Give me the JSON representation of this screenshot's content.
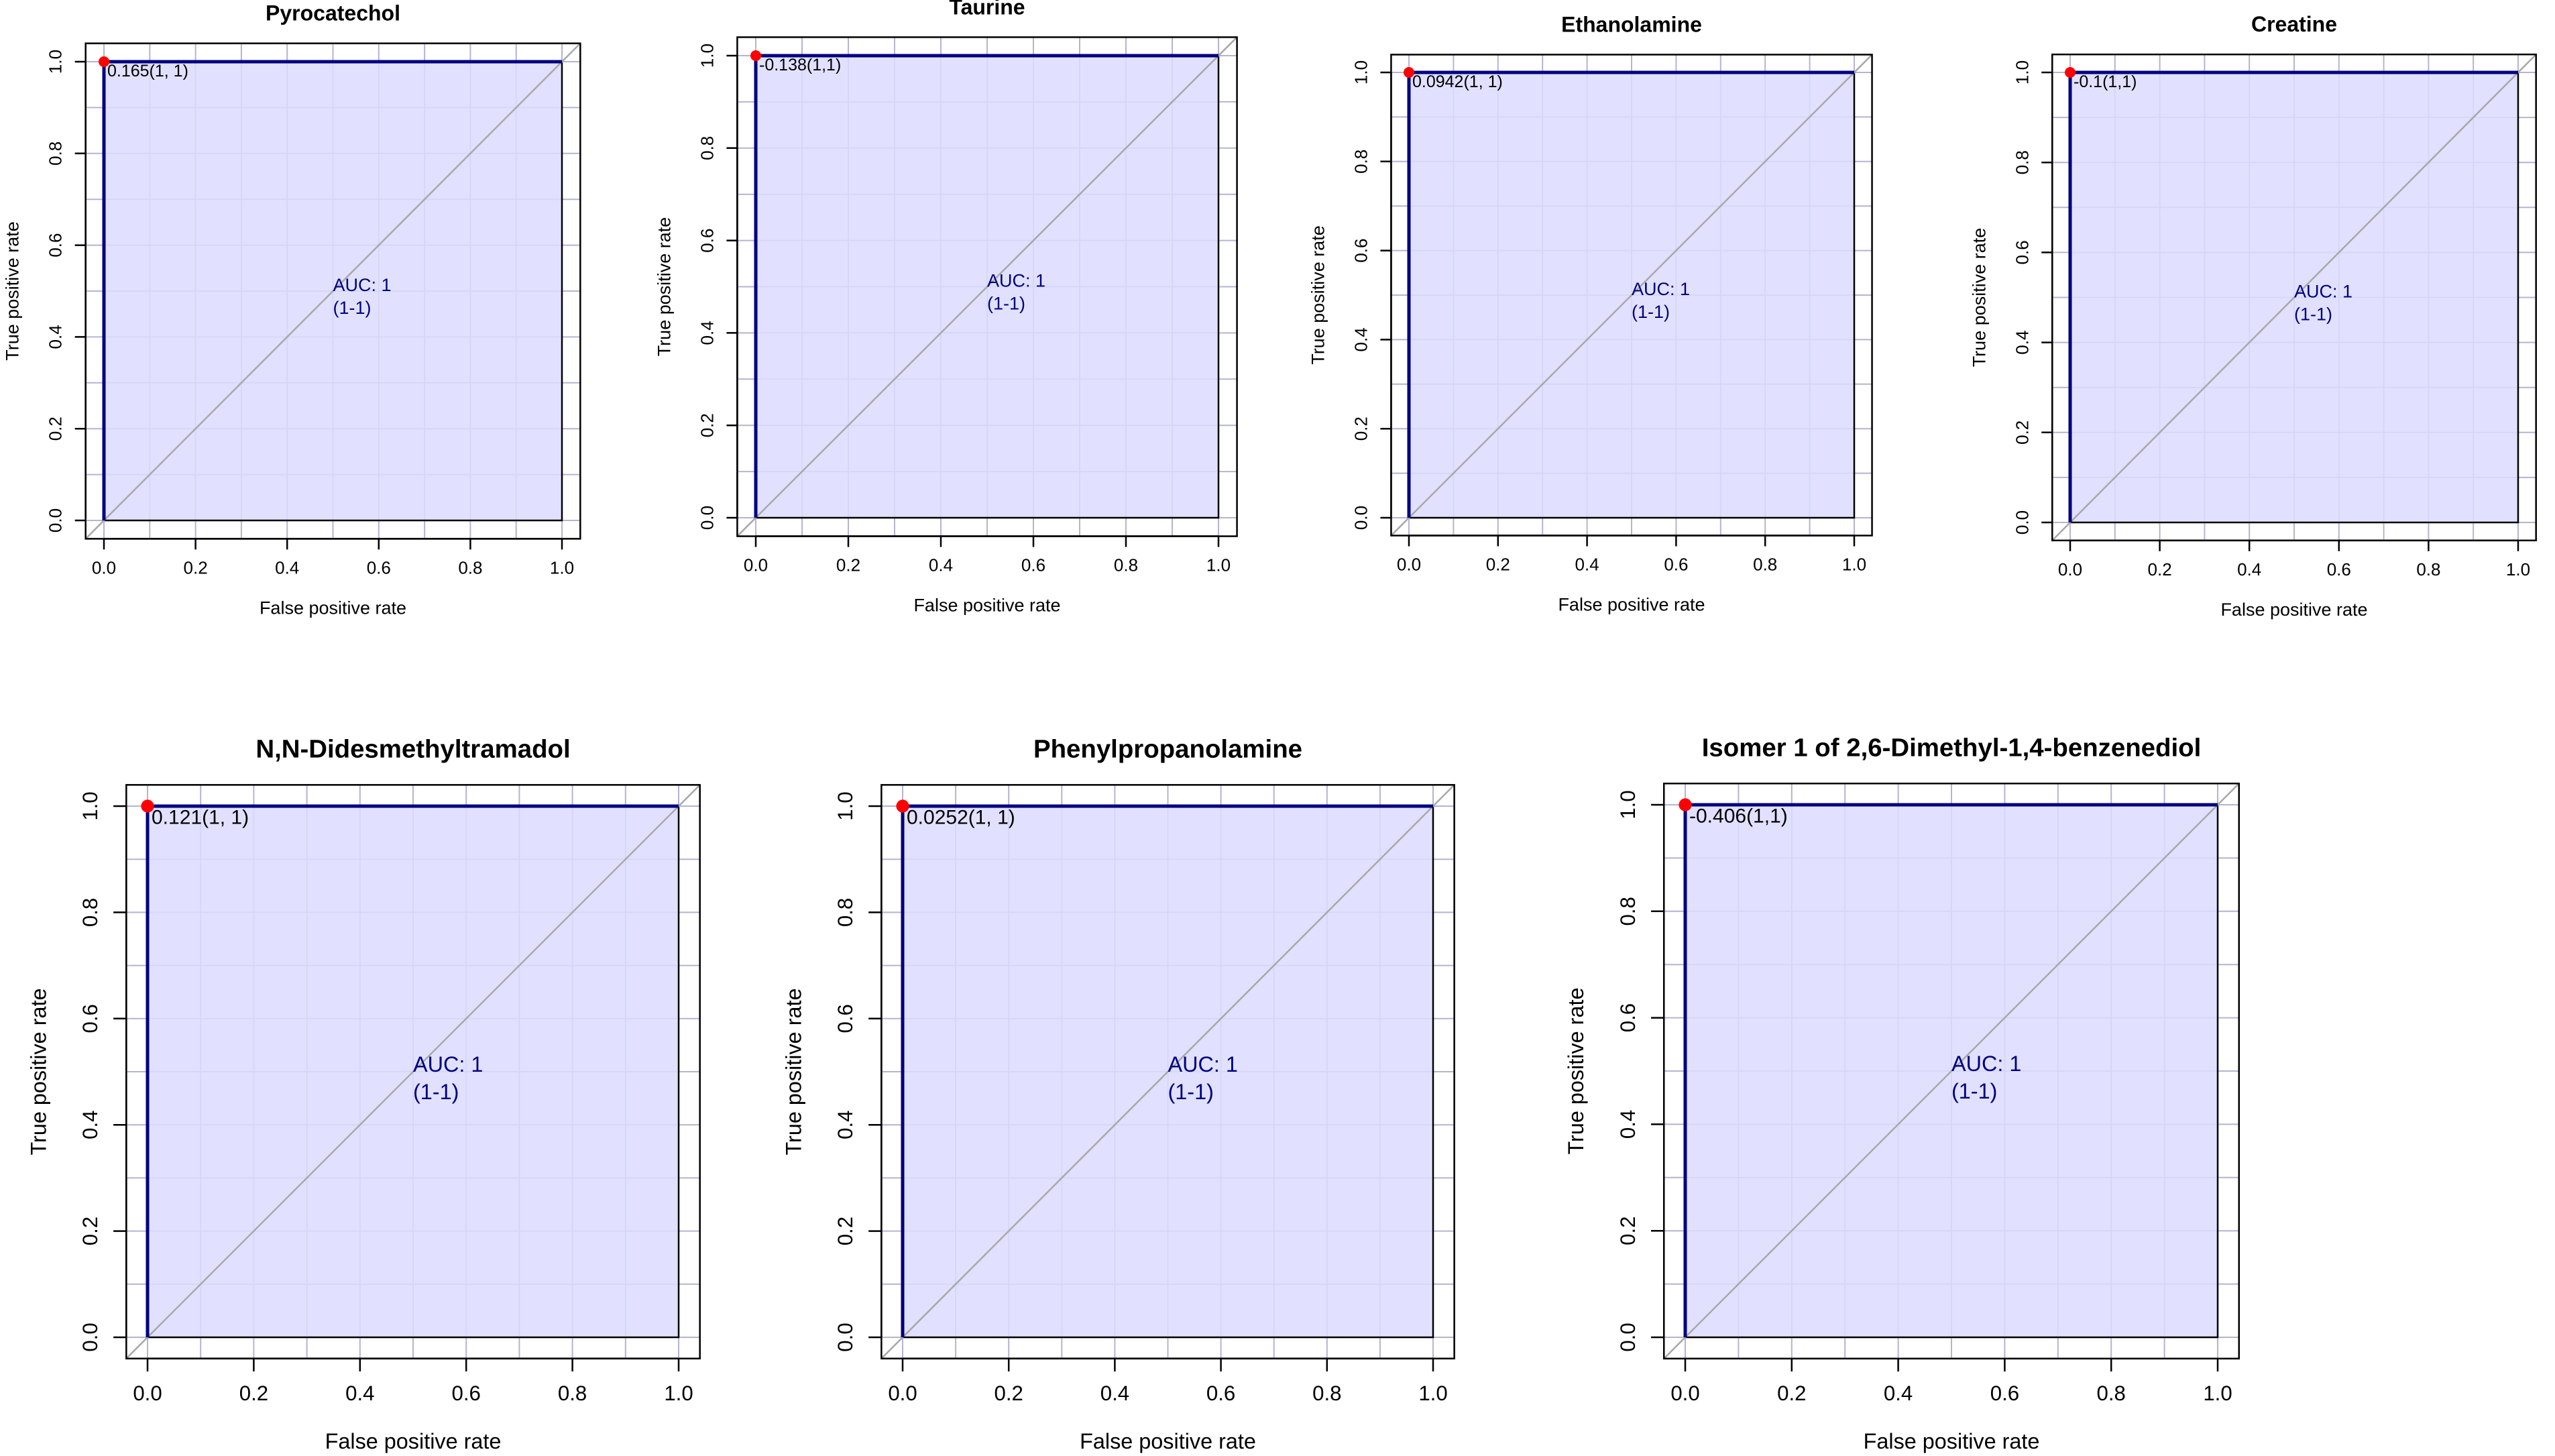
{
  "figure": {
    "panel_count": 7
  },
  "colors": {
    "fill": "#dcdcff",
    "curve": "#00007f",
    "annotation": "#00007f",
    "point": "#ff0000",
    "grid": "#b4b4d2",
    "diagonal": "#a8a8a8",
    "axis": "#000000"
  },
  "chart_data": [
    {
      "type": "line",
      "title": "Pyrocatechol",
      "xlabel": "False positive rate",
      "ylabel": "True positive rate",
      "xlim": [
        0,
        1
      ],
      "ylim": [
        0,
        1
      ],
      "x_ticks": [
        "0.0",
        "0.2",
        "0.4",
        "0.6",
        "0.8",
        "1.0"
      ],
      "y_ticks": [
        "0.0",
        "0.2",
        "0.4",
        "0.6",
        "0.8",
        "1.0"
      ],
      "roc_x": [
        0,
        0,
        1
      ],
      "roc_y": [
        0,
        1,
        1
      ],
      "best_threshold": {
        "fpr": 0,
        "tpr": 1,
        "label": "0.165(1, 1)"
      },
      "auc_label": "AUC: 1",
      "auc_ci_label": "(1-1)"
    },
    {
      "type": "line",
      "title": "Taurine",
      "xlabel": "False positive rate",
      "ylabel": "True positive rate",
      "xlim": [
        0,
        1
      ],
      "ylim": [
        0,
        1
      ],
      "x_ticks": [
        "0.0",
        "0.2",
        "0.4",
        "0.6",
        "0.8",
        "1.0"
      ],
      "y_ticks": [
        "0.0",
        "0.2",
        "0.4",
        "0.6",
        "0.8",
        "1.0"
      ],
      "roc_x": [
        0,
        0,
        1
      ],
      "roc_y": [
        0,
        1,
        1
      ],
      "best_threshold": {
        "fpr": 0,
        "tpr": 1,
        "label": "-0.138(1,1)"
      },
      "auc_label": "AUC: 1",
      "auc_ci_label": "(1-1)"
    },
    {
      "type": "line",
      "title": "Ethanolamine",
      "xlabel": "False positive rate",
      "ylabel": "True positive rate",
      "xlim": [
        0,
        1
      ],
      "ylim": [
        0,
        1
      ],
      "x_ticks": [
        "0.0",
        "0.2",
        "0.4",
        "0.6",
        "0.8",
        "1.0"
      ],
      "y_ticks": [
        "0.0",
        "0.2",
        "0.4",
        "0.6",
        "0.8",
        "1.0"
      ],
      "roc_x": [
        0,
        0,
        1
      ],
      "roc_y": [
        0,
        1,
        1
      ],
      "best_threshold": {
        "fpr": 0,
        "tpr": 1,
        "label": "0.0942(1, 1)"
      },
      "auc_label": "AUC: 1",
      "auc_ci_label": "(1-1)"
    },
    {
      "type": "line",
      "title": "Creatine",
      "xlabel": "False positive rate",
      "ylabel": "True positive rate",
      "xlim": [
        0,
        1
      ],
      "ylim": [
        0,
        1
      ],
      "x_ticks": [
        "0.0",
        "0.2",
        "0.4",
        "0.6",
        "0.8",
        "1.0"
      ],
      "y_ticks": [
        "0.0",
        "0.2",
        "0.4",
        "0.6",
        "0.8",
        "1.0"
      ],
      "roc_x": [
        0,
        0,
        1
      ],
      "roc_y": [
        0,
        1,
        1
      ],
      "best_threshold": {
        "fpr": 0,
        "tpr": 1,
        "label": "-0.1(1,1)"
      },
      "auc_label": "AUC: 1",
      "auc_ci_label": "(1-1)"
    },
    {
      "type": "line",
      "title": "N,N-Didesmethyltramadol",
      "xlabel": "False positive rate",
      "ylabel": "True positive rate",
      "xlim": [
        0,
        1
      ],
      "ylim": [
        0,
        1
      ],
      "x_ticks": [
        "0.0",
        "0.2",
        "0.4",
        "0.6",
        "0.8",
        "1.0"
      ],
      "y_ticks": [
        "0.0",
        "0.2",
        "0.4",
        "0.6",
        "0.8",
        "1.0"
      ],
      "roc_x": [
        0,
        0,
        1
      ],
      "roc_y": [
        0,
        1,
        1
      ],
      "best_threshold": {
        "fpr": 0,
        "tpr": 1,
        "label": "0.121(1, 1)"
      },
      "auc_label": "AUC: 1",
      "auc_ci_label": "(1-1)"
    },
    {
      "type": "line",
      "title": "Phenylpropanolamine",
      "xlabel": "False positive rate",
      "ylabel": "True positive rate",
      "xlim": [
        0,
        1
      ],
      "ylim": [
        0,
        1
      ],
      "x_ticks": [
        "0.0",
        "0.2",
        "0.4",
        "0.6",
        "0.8",
        "1.0"
      ],
      "y_ticks": [
        "0.0",
        "0.2",
        "0.4",
        "0.6",
        "0.8",
        "1.0"
      ],
      "roc_x": [
        0,
        0,
        1
      ],
      "roc_y": [
        0,
        1,
        1
      ],
      "best_threshold": {
        "fpr": 0,
        "tpr": 1,
        "label": "0.0252(1, 1)"
      },
      "auc_label": "AUC: 1",
      "auc_ci_label": "(1-1)"
    },
    {
      "type": "line",
      "title": "Isomer 1 of 2,6-Dimethyl-1,4-benzenediol",
      "xlabel": "False positive rate",
      "ylabel": "True positive rate",
      "xlim": [
        0,
        1
      ],
      "ylim": [
        0,
        1
      ],
      "x_ticks": [
        "0.0",
        "0.2",
        "0.4",
        "0.6",
        "0.8",
        "1.0"
      ],
      "y_ticks": [
        "0.0",
        "0.2",
        "0.4",
        "0.6",
        "0.8",
        "1.0"
      ],
      "roc_x": [
        0,
        0,
        1
      ],
      "roc_y": [
        0,
        1,
        1
      ],
      "best_threshold": {
        "fpr": 0,
        "tpr": 1,
        "label": "-0.406(1,1)"
      },
      "auc_label": "AUC: 1",
      "auc_ci_label": "(1-1)"
    }
  ]
}
